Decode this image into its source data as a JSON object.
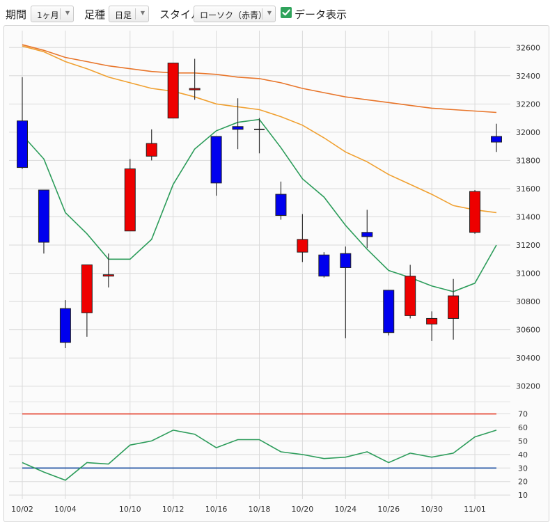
{
  "toolbar": {
    "period_label": "期間",
    "period_value": "1ヶ月",
    "candle_label": "足種",
    "candle_value": "日足",
    "style_label": "スタイル",
    "style_value": "ローソク（赤青）",
    "show_data_label": "データ表示",
    "show_data_checked": true
  },
  "chart_data": [
    {
      "type": "candlestick",
      "ylim": [
        30100,
        32700
      ],
      "yticks": [
        30200,
        30400,
        30600,
        30800,
        31000,
        31200,
        31400,
        31600,
        31800,
        32000,
        32200,
        32400,
        32600
      ],
      "x_tick_labels": [
        "10/02",
        "10/04",
        "10/10",
        "10/12",
        "10/16",
        "10/18",
        "10/20",
        "10/24",
        "10/26",
        "10/30",
        "11/01"
      ],
      "x_tick_index": [
        0,
        2,
        5,
        7,
        9,
        11,
        13,
        15,
        17,
        19,
        21
      ],
      "up_color": "#ee0000",
      "down_color": "#0000ee",
      "candles": [
        {
          "o": 32080,
          "h": 32390,
          "l": 31740,
          "c": 31750
        },
        {
          "o": 31590,
          "h": 31590,
          "l": 31140,
          "c": 31220
        },
        {
          "o": 30750,
          "h": 30810,
          "l": 30470,
          "c": 30510
        },
        {
          "o": 30720,
          "h": 31060,
          "l": 30550,
          "c": 31060
        },
        {
          "o": 30980,
          "h": 31140,
          "l": 30900,
          "c": 30990
        },
        {
          "o": 31300,
          "h": 31810,
          "l": 31300,
          "c": 31740
        },
        {
          "o": 31830,
          "h": 32020,
          "l": 31800,
          "c": 31920
        },
        {
          "o": 32100,
          "h": 32490,
          "l": 32100,
          "c": 32490
        },
        {
          "o": 32300,
          "h": 32520,
          "l": 32230,
          "c": 32310
        },
        {
          "o": 31970,
          "h": 31970,
          "l": 31550,
          "c": 31640
        },
        {
          "o": 32040,
          "h": 32240,
          "l": 31880,
          "c": 32020
        },
        {
          "o": 32020,
          "h": 32100,
          "l": 31850,
          "c": 32020
        },
        {
          "o": 31560,
          "h": 31650,
          "l": 31380,
          "c": 31410
        },
        {
          "o": 31150,
          "h": 31420,
          "l": 31080,
          "c": 31240
        },
        {
          "o": 31130,
          "h": 31150,
          "l": 30970,
          "c": 30980
        },
        {
          "o": 31140,
          "h": 31190,
          "l": 30540,
          "c": 31040
        },
        {
          "o": 31290,
          "h": 31450,
          "l": 31180,
          "c": 31260
        },
        {
          "o": 30880,
          "h": 30880,
          "l": 30560,
          "c": 30580
        },
        {
          "o": 30700,
          "h": 31060,
          "l": 30680,
          "c": 30980
        },
        {
          "o": 30640,
          "h": 30730,
          "l": 30520,
          "c": 30680
        },
        {
          "o": 30680,
          "h": 30960,
          "l": 30530,
          "c": 30840
        },
        {
          "o": 31290,
          "h": 31590,
          "l": 31280,
          "c": 31580
        },
        {
          "o": 31970,
          "h": 32060,
          "l": 31860,
          "c": 31930
        }
      ],
      "moving_averages": [
        {
          "color": "#2c9c5a",
          "values": [
            31980,
            31810,
            31430,
            31280,
            31100,
            31100,
            31240,
            31630,
            31880,
            32010,
            32070,
            32090,
            31890,
            31670,
            31540,
            31340,
            31170,
            31020,
            30970,
            30910,
            30870,
            30930,
            31200
          ]
        },
        {
          "color": "#f0a030",
          "values": [
            32610,
            32570,
            32500,
            32450,
            32390,
            32350,
            32310,
            32290,
            32250,
            32200,
            32180,
            32160,
            32110,
            32050,
            31960,
            31860,
            31790,
            31700,
            31630,
            31560,
            31480,
            31450,
            31430
          ]
        },
        {
          "color": "#e8752a",
          "values": [
            32620,
            32580,
            32530,
            32500,
            32470,
            32450,
            32430,
            32420,
            32420,
            32410,
            32390,
            32380,
            32350,
            32310,
            32280,
            32250,
            32230,
            32210,
            32190,
            32170,
            32160,
            32150,
            32140
          ]
        }
      ]
    },
    {
      "type": "line",
      "ylim": [
        7,
        78
      ],
      "yticks": [
        10,
        20,
        30,
        40,
        50,
        60,
        70
      ],
      "reference_lines": [
        {
          "value": 70,
          "color": "#e33c2a"
        },
        {
          "value": 30,
          "color": "#1e4fa0"
        }
      ],
      "series": [
        {
          "color": "#2c9c5a",
          "values": [
            34,
            27,
            21,
            34,
            33,
            47,
            50,
            58,
            55,
            45,
            51,
            51,
            42,
            40,
            37,
            38,
            42,
            34,
            41,
            38,
            41,
            53,
            58
          ]
        }
      ]
    }
  ]
}
